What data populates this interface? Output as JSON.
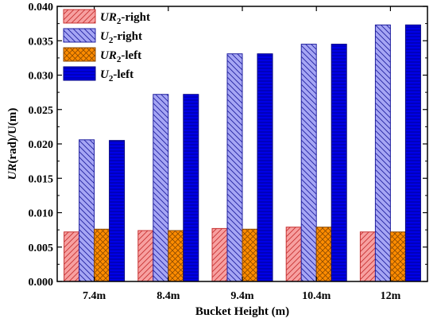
{
  "chart_data": {
    "type": "bar",
    "title": "",
    "xlabel": "Bucket Height (m)",
    "ylabel_var": "UR",
    "ylabel_rest": "(rad)/U(m)",
    "ylabel": "UR(rad)/U(m)",
    "categories": [
      "7.4m",
      "8.4m",
      "9.4m",
      "10.4m",
      "12m"
    ],
    "ylim": [
      0,
      0.04
    ],
    "yticks": [
      "0.000",
      "0.005",
      "0.010",
      "0.015",
      "0.020",
      "0.025",
      "0.030",
      "0.035",
      "0.040"
    ],
    "legend_position": "top-left",
    "series": [
      {
        "name": "UR2-right",
        "legend_var": "UR",
        "legend_sub": "2",
        "legend_rest": "-right",
        "values": [
          0.0072,
          0.0074,
          0.0077,
          0.0079,
          0.0072
        ],
        "fill": "#f7a0a0",
        "stroke": "#c83232",
        "pattern": "diag-up"
      },
      {
        "name": "U2-right",
        "legend_var": "U",
        "legend_sub": "2",
        "legend_rest": "-right",
        "values": [
          0.0206,
          0.0272,
          0.0331,
          0.0345,
          0.0373
        ],
        "fill": "#a6a6f4",
        "stroke": "#2020a0",
        "pattern": "diag-down"
      },
      {
        "name": "UR2-left",
        "legend_var": "UR",
        "legend_sub": "2",
        "legend_rest": "-left",
        "values": [
          0.0076,
          0.0074,
          0.0076,
          0.0079,
          0.0072
        ],
        "fill": "#ff8c00",
        "stroke": "#8b4a00",
        "pattern": "cross"
      },
      {
        "name": "U2-left",
        "legend_var": "U",
        "legend_sub": "2",
        "legend_rest": "-left",
        "values": [
          0.0205,
          0.0272,
          0.0331,
          0.0345,
          0.0373
        ],
        "fill": "#0000e6",
        "stroke": "#000080",
        "pattern": "horiz"
      }
    ]
  }
}
